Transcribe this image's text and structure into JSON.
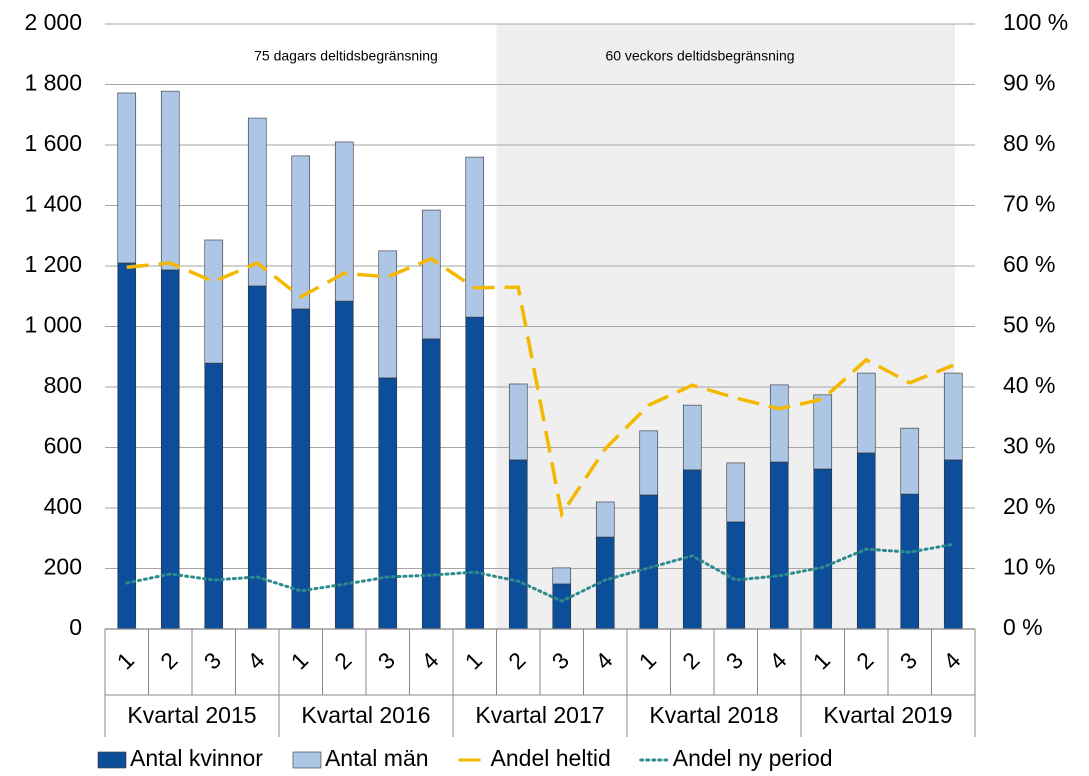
{
  "chart_data": {
    "type": "bar",
    "stacked": true,
    "annotations": [
      "75 dagars deltidsbegränsning",
      "60 veckors deltidsbegränsning"
    ],
    "categories": [
      "1",
      "2",
      "3",
      "4",
      "1",
      "2",
      "3",
      "4",
      "1",
      "2",
      "3",
      "4",
      "1",
      "2",
      "3",
      "4",
      "1",
      "2",
      "3",
      "4"
    ],
    "groups": [
      "Kvartal 2015",
      "Kvartal 2016",
      "Kvartal 2017",
      "Kvartal 2018",
      "Kvartal 2019"
    ],
    "series": [
      {
        "name": "Antal kvinnor",
        "type": "bar",
        "color": "#0d4e9b",
        "values": [
          1210,
          1187,
          879,
          1134,
          1058,
          1084,
          830,
          959,
          1031,
          559,
          149,
          304,
          443,
          526,
          354,
          552,
          529,
          582,
          446,
          559
        ]
      },
      {
        "name": "Antal män",
        "type": "bar",
        "color": "#adc6e5",
        "values": [
          562,
          591,
          407,
          555,
          506,
          526,
          420,
          426,
          529,
          251,
          53,
          116,
          212,
          214,
          195,
          255,
          245,
          264,
          218,
          287
        ]
      },
      {
        "name": "Andel heltid",
        "type": "line",
        "axis": "y2",
        "color": "#f5b800",
        "dash": "dashed",
        "values": [
          59.8,
          60.5,
          57.4,
          60.5,
          54.9,
          58.8,
          58.2,
          61.2,
          56.4,
          56.5,
          19,
          29.8,
          37,
          40.3,
          38.2,
          36.4,
          38,
          44.5,
          40.7,
          43.6
        ]
      },
      {
        "name": "Andel ny period",
        "type": "line",
        "axis": "y2",
        "color": "#2e8b8b",
        "dash": "dotted",
        "values": [
          7.6,
          9.1,
          8.1,
          8.6,
          6.3,
          7.4,
          8.6,
          8.9,
          9.4,
          7.9,
          4.6,
          8.1,
          10.1,
          12.1,
          8.1,
          8.8,
          10.2,
          13.2,
          12.7,
          14
        ]
      }
    ],
    "ylim": [
      0,
      2000
    ],
    "yticks": [
      0,
      {
        "value": 200,
        "label": "200"
      },
      400,
      600,
      800,
      {
        "value": 1000,
        "label": "1 000"
      },
      {
        "value": 1200,
        "label": "1 200"
      },
      {
        "value": 1400,
        "label": "1 400"
      },
      {
        "value": 1600,
        "label": "1 600"
      },
      {
        "value": 1800,
        "label": "1 800"
      },
      {
        "value": 2000,
        "label": "2 000"
      }
    ],
    "y2lim": [
      0,
      100
    ],
    "y2ticks": [
      {
        "value": 0,
        "label": "0 %"
      },
      {
        "value": 10,
        "label": "10 %"
      },
      {
        "value": 20,
        "label": "20 %"
      },
      {
        "value": 30,
        "label": "30 %"
      },
      {
        "value": 40,
        "label": "40 %"
      },
      {
        "value": 50,
        "label": "50 %"
      },
      {
        "value": 60,
        "label": "60 %"
      },
      {
        "value": 70,
        "label": "70 %"
      },
      {
        "value": 80,
        "label": "80 %"
      },
      {
        "value": 90,
        "label": "90 %"
      },
      {
        "value": 100,
        "label": "100 %"
      }
    ],
    "grid": true,
    "legend": "bottom"
  }
}
